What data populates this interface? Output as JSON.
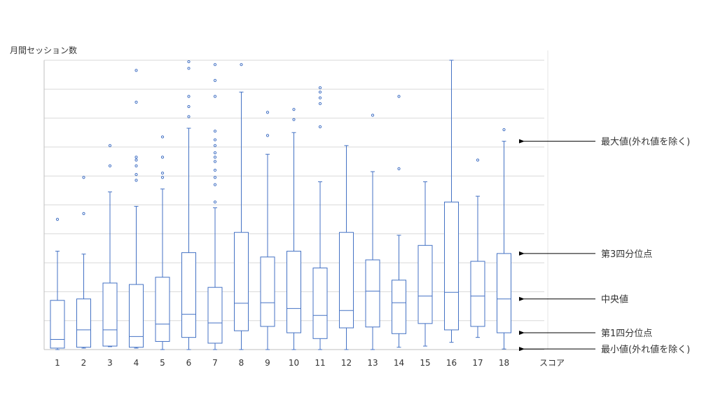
{
  "chart_data": {
    "type": "box",
    "ylabel": "月間セッション数",
    "xlabel": "スコア",
    "categories": [
      "1",
      "2",
      "3",
      "4",
      "5",
      "6",
      "7",
      "8",
      "9",
      "10",
      "11",
      "12",
      "13",
      "14",
      "15",
      "16",
      "17",
      "18"
    ],
    "ylim": [
      0,
      10
    ],
    "yticks": [
      0,
      1,
      2,
      3,
      4,
      5,
      6,
      7,
      8,
      9,
      10
    ],
    "ytick_labels_shown": false,
    "grid": true,
    "colors": {
      "box": "#4472c4",
      "grid": "#d9d9d9",
      "axis": "#bfbfbf",
      "arrow": "#000000"
    },
    "boxes": [
      {
        "min": 0.0,
        "q1": 0.05,
        "median": 0.35,
        "q3": 1.7,
        "max": 3.4,
        "outliers": [
          4.5
        ]
      },
      {
        "min": 0.05,
        "q1": 0.08,
        "median": 0.68,
        "q3": 1.75,
        "max": 3.3,
        "outliers": [
          4.7,
          5.95
        ]
      },
      {
        "min": 0.1,
        "q1": 0.12,
        "median": 0.68,
        "q3": 2.3,
        "max": 5.45,
        "outliers": [
          6.35,
          7.05
        ]
      },
      {
        "min": 0.05,
        "q1": 0.08,
        "median": 0.45,
        "q3": 2.25,
        "max": 4.95,
        "outliers": [
          5.85,
          6.05,
          6.35,
          6.55,
          6.65,
          8.55,
          9.65
        ]
      },
      {
        "min": 0.0,
        "q1": 0.28,
        "median": 0.88,
        "q3": 2.5,
        "max": 5.55,
        "outliers": [
          5.95,
          6.1,
          6.65,
          7.35
        ]
      },
      {
        "min": 0.0,
        "q1": 0.42,
        "median": 1.22,
        "q3": 3.35,
        "max": 7.65,
        "outliers": [
          8.05,
          8.4,
          8.75,
          9.72,
          9.95
        ]
      },
      {
        "min": 0.0,
        "q1": 0.22,
        "median": 0.92,
        "q3": 2.15,
        "max": 4.9,
        "outliers": [
          5.1,
          5.7,
          5.95,
          6.2,
          6.5,
          6.65,
          6.8,
          7.05,
          7.25,
          7.55,
          8.75,
          9.3,
          9.85
        ]
      },
      {
        "min": 0.0,
        "q1": 0.65,
        "median": 1.6,
        "q3": 4.05,
        "max": 8.9,
        "outliers": [
          9.85
        ]
      },
      {
        "min": 0.0,
        "q1": 0.8,
        "median": 1.62,
        "q3": 3.2,
        "max": 6.75,
        "outliers": [
          7.4,
          8.2
        ]
      },
      {
        "min": 0.0,
        "q1": 0.58,
        "median": 1.42,
        "q3": 3.4,
        "max": 7.5,
        "outliers": [
          7.95,
          8.3
        ]
      },
      {
        "min": 0.0,
        "q1": 0.38,
        "median": 1.18,
        "q3": 2.82,
        "max": 5.8,
        "outliers": [
          7.7,
          8.5,
          8.7,
          8.9,
          9.05
        ]
      },
      {
        "min": 0.0,
        "q1": 0.75,
        "median": 1.35,
        "q3": 4.05,
        "max": 7.05,
        "outliers": []
      },
      {
        "min": 0.0,
        "q1": 0.78,
        "median": 2.02,
        "q3": 3.1,
        "max": 6.15,
        "outliers": [
          8.1
        ]
      },
      {
        "min": 0.08,
        "q1": 0.55,
        "median": 1.62,
        "q3": 2.4,
        "max": 3.95,
        "outliers": [
          6.25,
          8.75
        ]
      },
      {
        "min": 0.12,
        "q1": 0.9,
        "median": 1.85,
        "q3": 3.6,
        "max": 5.8,
        "outliers": []
      },
      {
        "min": 0.25,
        "q1": 0.68,
        "median": 1.98,
        "q3": 5.1,
        "max": 10.0,
        "outliers": []
      },
      {
        "min": 0.42,
        "q1": 0.8,
        "median": 1.85,
        "q3": 3.05,
        "max": 5.3,
        "outliers": [
          6.55
        ]
      },
      {
        "min": 0.02,
        "q1": 0.58,
        "median": 1.75,
        "q3": 3.32,
        "max": 7.2,
        "outliers": [
          7.6
        ]
      }
    ],
    "annotations": [
      {
        "text": "最大値(外れ値を除く)",
        "points_to": "max",
        "series_index": 17
      },
      {
        "text": "第3四分位点",
        "points_to": "q3",
        "series_index": 17
      },
      {
        "text": "中央値",
        "points_to": "median",
        "series_index": 17
      },
      {
        "text": "第1四分位点",
        "points_to": "q1",
        "series_index": 17
      },
      {
        "text": "最小値(外れ値を除く)",
        "points_to": "min",
        "series_index": 17
      }
    ]
  }
}
